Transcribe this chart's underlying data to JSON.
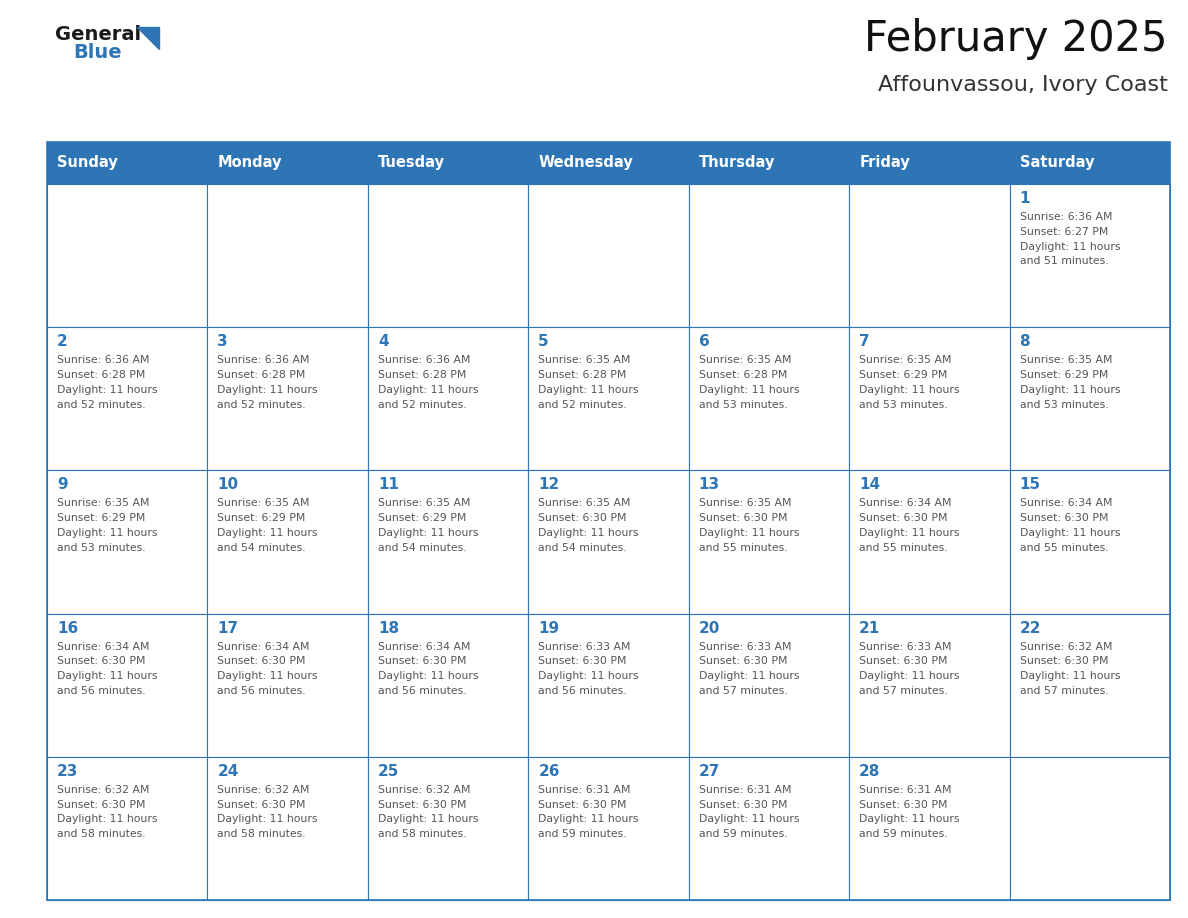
{
  "title": "February 2025",
  "subtitle": "Affounvassou, Ivory Coast",
  "days_of_week": [
    "Sunday",
    "Monday",
    "Tuesday",
    "Wednesday",
    "Thursday",
    "Friday",
    "Saturday"
  ],
  "header_bg": "#2E75B6",
  "header_text": "#FFFFFF",
  "cell_bg": "#FFFFFF",
  "cell_border": "#2E75B6",
  "day_num_color": "#2E75B6",
  "info_color": "#555555",
  "logo_general_color": "#1a1a1a",
  "logo_blue_color": "#2E75B6",
  "calendar": [
    [
      null,
      null,
      null,
      null,
      null,
      null,
      1
    ],
    [
      2,
      3,
      4,
      5,
      6,
      7,
      8
    ],
    [
      9,
      10,
      11,
      12,
      13,
      14,
      15
    ],
    [
      16,
      17,
      18,
      19,
      20,
      21,
      22
    ],
    [
      23,
      24,
      25,
      26,
      27,
      28,
      null
    ]
  ],
  "sun_data": {
    "1": {
      "rise": "6:36 AM",
      "set": "6:27 PM",
      "dl1": "Daylight: 11 hours",
      "dl2": "and 51 minutes."
    },
    "2": {
      "rise": "6:36 AM",
      "set": "6:28 PM",
      "dl1": "Daylight: 11 hours",
      "dl2": "and 52 minutes."
    },
    "3": {
      "rise": "6:36 AM",
      "set": "6:28 PM",
      "dl1": "Daylight: 11 hours",
      "dl2": "and 52 minutes."
    },
    "4": {
      "rise": "6:36 AM",
      "set": "6:28 PM",
      "dl1": "Daylight: 11 hours",
      "dl2": "and 52 minutes."
    },
    "5": {
      "rise": "6:35 AM",
      "set": "6:28 PM",
      "dl1": "Daylight: 11 hours",
      "dl2": "and 52 minutes."
    },
    "6": {
      "rise": "6:35 AM",
      "set": "6:28 PM",
      "dl1": "Daylight: 11 hours",
      "dl2": "and 53 minutes."
    },
    "7": {
      "rise": "6:35 AM",
      "set": "6:29 PM",
      "dl1": "Daylight: 11 hours",
      "dl2": "and 53 minutes."
    },
    "8": {
      "rise": "6:35 AM",
      "set": "6:29 PM",
      "dl1": "Daylight: 11 hours",
      "dl2": "and 53 minutes."
    },
    "9": {
      "rise": "6:35 AM",
      "set": "6:29 PM",
      "dl1": "Daylight: 11 hours",
      "dl2": "and 53 minutes."
    },
    "10": {
      "rise": "6:35 AM",
      "set": "6:29 PM",
      "dl1": "Daylight: 11 hours",
      "dl2": "and 54 minutes."
    },
    "11": {
      "rise": "6:35 AM",
      "set": "6:29 PM",
      "dl1": "Daylight: 11 hours",
      "dl2": "and 54 minutes."
    },
    "12": {
      "rise": "6:35 AM",
      "set": "6:30 PM",
      "dl1": "Daylight: 11 hours",
      "dl2": "and 54 minutes."
    },
    "13": {
      "rise": "6:35 AM",
      "set": "6:30 PM",
      "dl1": "Daylight: 11 hours",
      "dl2": "and 55 minutes."
    },
    "14": {
      "rise": "6:34 AM",
      "set": "6:30 PM",
      "dl1": "Daylight: 11 hours",
      "dl2": "and 55 minutes."
    },
    "15": {
      "rise": "6:34 AM",
      "set": "6:30 PM",
      "dl1": "Daylight: 11 hours",
      "dl2": "and 55 minutes."
    },
    "16": {
      "rise": "6:34 AM",
      "set": "6:30 PM",
      "dl1": "Daylight: 11 hours",
      "dl2": "and 56 minutes."
    },
    "17": {
      "rise": "6:34 AM",
      "set": "6:30 PM",
      "dl1": "Daylight: 11 hours",
      "dl2": "and 56 minutes."
    },
    "18": {
      "rise": "6:34 AM",
      "set": "6:30 PM",
      "dl1": "Daylight: 11 hours",
      "dl2": "and 56 minutes."
    },
    "19": {
      "rise": "6:33 AM",
      "set": "6:30 PM",
      "dl1": "Daylight: 11 hours",
      "dl2": "and 56 minutes."
    },
    "20": {
      "rise": "6:33 AM",
      "set": "6:30 PM",
      "dl1": "Daylight: 11 hours",
      "dl2": "and 57 minutes."
    },
    "21": {
      "rise": "6:33 AM",
      "set": "6:30 PM",
      "dl1": "Daylight: 11 hours",
      "dl2": "and 57 minutes."
    },
    "22": {
      "rise": "6:32 AM",
      "set": "6:30 PM",
      "dl1": "Daylight: 11 hours",
      "dl2": "and 57 minutes."
    },
    "23": {
      "rise": "6:32 AM",
      "set": "6:30 PM",
      "dl1": "Daylight: 11 hours",
      "dl2": "and 58 minutes."
    },
    "24": {
      "rise": "6:32 AM",
      "set": "6:30 PM",
      "dl1": "Daylight: 11 hours",
      "dl2": "and 58 minutes."
    },
    "25": {
      "rise": "6:32 AM",
      "set": "6:30 PM",
      "dl1": "Daylight: 11 hours",
      "dl2": "and 58 minutes."
    },
    "26": {
      "rise": "6:31 AM",
      "set": "6:30 PM",
      "dl1": "Daylight: 11 hours",
      "dl2": "and 59 minutes."
    },
    "27": {
      "rise": "6:31 AM",
      "set": "6:30 PM",
      "dl1": "Daylight: 11 hours",
      "dl2": "and 59 minutes."
    },
    "28": {
      "rise": "6:31 AM",
      "set": "6:30 PM",
      "dl1": "Daylight: 11 hours",
      "dl2": "and 59 minutes."
    }
  },
  "fig_width": 11.88,
  "fig_height": 9.18,
  "dpi": 100
}
